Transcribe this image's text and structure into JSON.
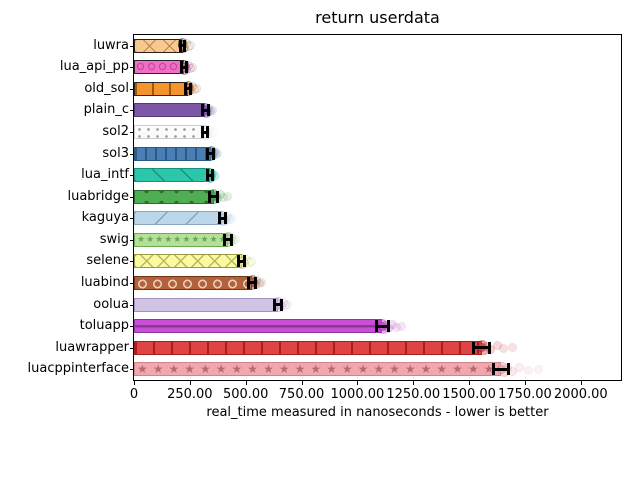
{
  "chart_data": {
    "type": "bar",
    "orientation": "horizontal",
    "title": "return userdata",
    "xlabel": "real_time measured in nanoseconds - lower is better",
    "xlim": [
      0,
      2180
    ],
    "grid": false,
    "legend": "none",
    "xticks": [
      {
        "v": 0,
        "label": "0"
      },
      {
        "v": 250,
        "label": "250.00"
      },
      {
        "v": 500,
        "label": "500.00"
      },
      {
        "v": 750,
        "label": "750.00"
      },
      {
        "v": 1000,
        "label": "1000.00"
      },
      {
        "v": 1250,
        "label": "1250.00"
      },
      {
        "v": 1500,
        "label": "1500.00"
      },
      {
        "v": 1750,
        "label": "1750.00"
      },
      {
        "v": 2000,
        "label": "2000.00"
      }
    ],
    "categories": [
      "luwra",
      "lua_api_pp",
      "old_sol",
      "plain_c",
      "sol2",
      "sol3",
      "lua_intf",
      "luabridge",
      "kaguya",
      "swig",
      "selene",
      "luabind",
      "oolua",
      "toluapp",
      "luawrapper",
      "luacppinterface"
    ],
    "series": [
      {
        "label": "luwra",
        "value": 218,
        "error": 8,
        "outlier_max": 252,
        "fill": "#f7c98e",
        "hatch": {
          "type": "x",
          "period": 14
        },
        "hatch_color": "#b9864f",
        "edge": "#2b2118"
      },
      {
        "label": "lua_api_pp",
        "value": 224,
        "error": 10,
        "outlier_max": 262,
        "fill": "#ef6fc5",
        "hatch": {
          "type": "O"
        },
        "hatch_color": "#c2479e",
        "edge": "#272727"
      },
      {
        "label": "old_sol",
        "value": 242,
        "error": 12,
        "outlier_max": 282,
        "fill": "#f5942d",
        "hatch": {
          "type": "vline",
          "period": 17
        },
        "hatch_color": "#9c5a10",
        "edge": "#272727"
      },
      {
        "label": "plain_c",
        "value": 320,
        "error": 12,
        "outlier_max": 350,
        "fill": "#7d56a6",
        "hatch": {
          "type": "none"
        },
        "hatch_color": "#533972",
        "edge": "#533972"
      },
      {
        "label": "sol2",
        "value": 318,
        "error": 12,
        "outlier_max": 358,
        "fill": "#fbfbfb",
        "hatch": {
          "type": "dot"
        },
        "hatch_color": "#9e9e9e",
        "edge": "#cccccc"
      },
      {
        "label": "sol3",
        "value": 344,
        "error": 14,
        "outlier_max": 376,
        "fill": "#4a7fb5",
        "hatch": {
          "type": "vline",
          "period": 10
        },
        "hatch_color": "#2a5a85",
        "edge": "#2a5a85"
      },
      {
        "label": "lua_intf",
        "value": 341,
        "error": 10,
        "outlier_max": 366,
        "fill": "#2cc7ab",
        "hatch": {
          "type": "bslash",
          "period": 20
        },
        "hatch_color": "#17917c",
        "edge": "#17917c"
      },
      {
        "label": "luabridge",
        "value": 356,
        "error": 18,
        "outlier_max": 420,
        "fill": "#4fae52",
        "hatch": {
          "type": "dotbig"
        },
        "hatch_color": "#2e6e30",
        "edge": "#2e6e30"
      },
      {
        "label": "kaguya",
        "value": 395,
        "error": 14,
        "outlier_max": 438,
        "fill": "#bcd7ea",
        "hatch": {
          "type": "fslash",
          "period": 22
        },
        "hatch_color": "#7fa6c5",
        "edge": "#90a8bb"
      },
      {
        "label": "swig",
        "value": 421,
        "error": 14,
        "outlier_max": 456,
        "fill": "#b6df9b",
        "hatch": {
          "type": "star",
          "size": 9,
          "gap": 1
        },
        "hatch_color": "#67a94e",
        "edge": "#67a94e"
      },
      {
        "label": "selene",
        "value": 482,
        "error": 14,
        "outlier_max": 528,
        "fill": "#fafaa0",
        "hatch": {
          "type": "x",
          "period": 12
        },
        "hatch_color": "#b8b85e",
        "edge": "#9a9a45"
      },
      {
        "label": "luabind",
        "value": 529,
        "error": 16,
        "outlier_max": 572,
        "fill": "#b2613b",
        "hatch": {
          "type": "Obig"
        },
        "hatch_color": "#e9cdbb",
        "edge": "#6e3517"
      },
      {
        "label": "oolua",
        "value": 646,
        "error": 16,
        "outlier_max": 688,
        "fill": "#d1c3e3",
        "hatch": {
          "type": "none"
        },
        "hatch_color": "#a391bd",
        "edge": "#a391bd"
      },
      {
        "label": "toluapp",
        "value": 1112,
        "error": 26,
        "outlier_max": 1198,
        "fill": "#c94fd4",
        "hatch": {
          "type": "hline"
        },
        "hatch_color": "#8f35a0",
        "edge": "#8f35a0"
      },
      {
        "label": "luawrapper",
        "value": 1556,
        "error": 36,
        "outlier_max": 1694,
        "fill": "#e04343",
        "hatch": {
          "type": "vline",
          "period": 18
        },
        "hatch_color": "#a81f1f",
        "edge": "#a81f1f"
      },
      {
        "label": "luacppinterface",
        "value": 1643,
        "error": 32,
        "outlier_max": 1812,
        "fill": "#f2a7ae",
        "hatch": {
          "type": "star",
          "size": 12,
          "gap": 5
        },
        "hatch_color": "#b96a70",
        "edge": "#c9868d"
      }
    ],
    "error_bar_color": "#000000"
  }
}
